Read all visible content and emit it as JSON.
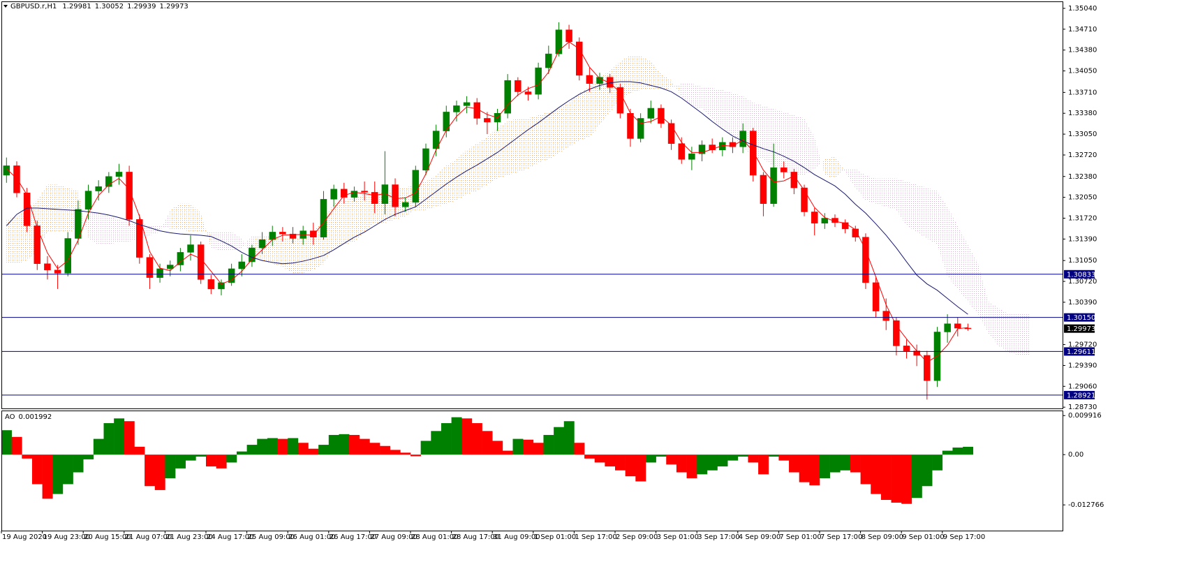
{
  "chart_data": {
    "type": "candlestick",
    "title": "GBPUSD.r,H1",
    "categories": [
      "19 Aug 2020",
      null,
      null,
      null,
      "19 Aug 23:00",
      null,
      null,
      null,
      "20 Aug 15:00",
      null,
      null,
      null,
      "21 Aug 07:00",
      null,
      null,
      null,
      "21 Aug 23:00",
      null,
      null,
      null,
      "24 Aug 17:00",
      null,
      null,
      null,
      "25 Aug 09:00",
      null,
      null,
      null,
      "26 Aug 01:00",
      null,
      null,
      null,
      "26 Aug 17:00",
      null,
      null,
      null,
      "27 Aug 09:00",
      null,
      null,
      null,
      "28 Aug 01:00",
      null,
      null,
      null,
      "28 Aug 17:00",
      null,
      null,
      null,
      "31 Aug 09:00",
      null,
      null,
      null,
      "1 Sep 01:00",
      null,
      null,
      null,
      "1 Sep 17:00",
      null,
      null,
      null,
      "2 Sep 09:00",
      null,
      null,
      null,
      "3 Sep 01:00",
      null,
      null,
      null,
      "3 Sep 17:00",
      null,
      null,
      null,
      "4 Sep 09:00",
      null,
      null,
      null,
      "7 Sep 01:00",
      null,
      null,
      null,
      "7 Sep 17:00",
      null,
      null,
      null,
      "8 Sep 09:00",
      null,
      null,
      null,
      "9 Sep 01:00",
      null,
      null,
      null,
      "9 Sep 17:00",
      null,
      null,
      null,
      null,
      null,
      null,
      null,
      null
    ],
    "open": [
      1.324,
      1.3255,
      1.3212,
      1.316,
      1.31,
      1.309,
      1.3085,
      1.314,
      1.3186,
      1.3215,
      1.3222,
      1.3238,
      1.3245,
      1.317,
      1.311,
      1.3078,
      1.3092,
      1.3098,
      1.3118,
      1.313,
      1.3075,
      1.306,
      1.307,
      1.3092,
      1.3103,
      1.3125,
      1.3138,
      1.315,
      1.3147,
      1.314,
      1.3152,
      1.3142,
      1.3202,
      1.3218,
      1.3205,
      1.3215,
      1.3213,
      1.3195,
      1.3225,
      1.319,
      1.3197,
      1.3248,
      1.3282,
      1.331,
      1.334,
      1.335,
      1.3355,
      1.333,
      1.3324,
      1.3338,
      1.339,
      1.3372,
      1.3368,
      1.341,
      1.3432,
      1.347,
      1.3451,
      1.3398,
      1.3385,
      1.3395,
      1.3379,
      1.3338,
      1.3298,
      1.333,
      1.3346,
      1.3322,
      1.329,
      1.3265,
      1.3274,
      1.3288,
      1.328,
      1.3292,
      1.3285,
      1.331,
      1.324,
      1.3195,
      1.3252,
      1.3245,
      1.322,
      1.3182,
      1.3164,
      1.3172,
      1.3165,
      1.3155,
      1.3142,
      1.307,
      1.3025,
      1.301,
      1.297,
      1.2962,
      1.2955,
      1.2915,
      1.2992,
      1.3005,
      1.29981,
      null,
      null,
      null,
      null,
      null,
      null
    ],
    "high": [
      1.3268,
      1.3262,
      1.322,
      1.3168,
      1.3112,
      1.3098,
      1.315,
      1.32,
      1.3225,
      1.3232,
      1.3245,
      1.3258,
      1.3255,
      1.3178,
      1.3115,
      1.31,
      1.3105,
      1.3125,
      1.3145,
      1.3135,
      1.3082,
      1.3075,
      1.31,
      1.3115,
      1.313,
      1.315,
      1.316,
      1.3158,
      1.3158,
      1.316,
      1.3165,
      1.3215,
      1.3225,
      1.3228,
      1.3222,
      1.323,
      1.323,
      1.3278,
      1.3235,
      1.3205,
      1.3255,
      1.329,
      1.332,
      1.335,
      1.3358,
      1.3365,
      1.3362,
      1.334,
      1.3345,
      1.34,
      1.3395,
      1.338,
      1.3418,
      1.3445,
      1.3482,
      1.3478,
      1.3458,
      1.341,
      1.3402,
      1.34,
      1.3385,
      1.3345,
      1.3338,
      1.3358,
      1.3352,
      1.3328,
      1.33,
      1.3285,
      1.3295,
      1.3298,
      1.33,
      1.33,
      1.3322,
      1.3315,
      1.3245,
      1.329,
      1.3262,
      1.325,
      1.3225,
      1.3188,
      1.318,
      1.3178,
      1.317,
      1.316,
      1.3148,
      1.3078,
      1.3045,
      1.3015,
      1.298,
      1.2972,
      1.2962,
      1.3,
      1.302,
      1.3015,
      1.30052,
      null,
      null,
      null,
      null,
      null,
      null
    ],
    "low": [
      1.3228,
      1.3205,
      1.315,
      1.309,
      1.3075,
      1.306,
      1.308,
      1.313,
      1.317,
      1.32,
      1.3212,
      1.3225,
      1.316,
      1.31,
      1.306,
      1.307,
      1.308,
      1.3088,
      1.3105,
      1.3068,
      1.3052,
      1.305,
      1.3065,
      1.308,
      1.3095,
      1.3115,
      1.3128,
      1.3135,
      1.3132,
      1.313,
      1.313,
      1.3138,
      1.319,
      1.3195,
      1.3198,
      1.32,
      1.318,
      1.3178,
      1.3175,
      1.3182,
      1.319,
      1.324,
      1.327,
      1.33,
      1.3325,
      1.3338,
      1.332,
      1.3305,
      1.331,
      1.333,
      1.3365,
      1.3358,
      1.336,
      1.34,
      1.3428,
      1.344,
      1.339,
      1.3372,
      1.3375,
      1.337,
      1.333,
      1.3285,
      1.3292,
      1.3322,
      1.3315,
      1.328,
      1.3258,
      1.3248,
      1.3262,
      1.3275,
      1.327,
      1.3275,
      1.3275,
      1.323,
      1.3175,
      1.319,
      1.3235,
      1.321,
      1.3175,
      1.3145,
      1.3155,
      1.3158,
      1.3148,
      1.3135,
      1.306,
      1.3015,
      1.2995,
      1.2955,
      1.295,
      1.2938,
      1.2885,
      1.2905,
      1.2975,
      1.2985,
      1.29939,
      null,
      null,
      null,
      null,
      null,
      null
    ],
    "close": [
      1.3255,
      1.3212,
      1.316,
      1.31,
      1.309,
      1.3085,
      1.314,
      1.3186,
      1.3215,
      1.3222,
      1.3238,
      1.3245,
      1.317,
      1.311,
      1.3078,
      1.3092,
      1.3098,
      1.3118,
      1.313,
      1.3075,
      1.306,
      1.307,
      1.3092,
      1.3103,
      1.3125,
      1.3138,
      1.315,
      1.3147,
      1.314,
      1.3152,
      1.3142,
      1.3202,
      1.3218,
      1.3205,
      1.3215,
      1.3213,
      1.3195,
      1.3225,
      1.319,
      1.3197,
      1.3248,
      1.3282,
      1.331,
      1.334,
      1.335,
      1.3355,
      1.333,
      1.3324,
      1.3338,
      1.339,
      1.3372,
      1.3368,
      1.341,
      1.3432,
      1.347,
      1.3451,
      1.3398,
      1.3385,
      1.3395,
      1.3379,
      1.3338,
      1.3298,
      1.333,
      1.3346,
      1.3322,
      1.329,
      1.3265,
      1.3274,
      1.3288,
      1.328,
      1.3292,
      1.3285,
      1.331,
      1.324,
      1.3195,
      1.3252,
      1.3245,
      1.322,
      1.3182,
      1.3164,
      1.3172,
      1.3165,
      1.3155,
      1.3142,
      1.307,
      1.3025,
      1.301,
      1.297,
      1.2962,
      1.2955,
      1.2915,
      1.2992,
      1.3005,
      1.2998,
      1.29973,
      null,
      null,
      null,
      null,
      null,
      null
    ],
    "up_color": "#008000",
    "down_color": "#ff0000",
    "ylim": [
      1.2871,
      1.3515
    ],
    "yticks": [
      {
        "value": 1.3504,
        "label": "1.35040"
      },
      {
        "value": 1.3471,
        "label": "1.34710"
      },
      {
        "value": 1.3438,
        "label": "1.34380"
      },
      {
        "value": 1.3405,
        "label": "1.34050"
      },
      {
        "value": 1.3371,
        "label": "1.33710"
      },
      {
        "value": 1.3338,
        "label": "1.33380"
      },
      {
        "value": 1.3305,
        "label": "1.33050"
      },
      {
        "value": 1.3272,
        "label": "1.32720"
      },
      {
        "value": 1.3238,
        "label": "1.32380"
      },
      {
        "value": 1.3205,
        "label": "1.32050"
      },
      {
        "value": 1.3172,
        "label": "1.31720"
      },
      {
        "value": 1.3139,
        "label": "1.31390"
      },
      {
        "value": 1.3105,
        "label": "1.31050"
      },
      {
        "value": 1.3072,
        "label": "1.30720"
      },
      {
        "value": 1.3039,
        "label": "1.30390"
      },
      {
        "value": 1.2972,
        "label": "1.29720"
      },
      {
        "value": 1.2939,
        "label": "1.29390"
      },
      {
        "value": 1.2906,
        "label": "1.29060"
      },
      {
        "value": 1.2873,
        "label": "1.28730"
      }
    ],
    "overlays": [
      {
        "color": "#ff0000",
        "values": [
          1.325,
          1.3235,
          1.3209,
          1.3157,
          1.3117,
          1.3092,
          1.3105,
          1.3137,
          1.318,
          1.3208,
          1.3225,
          1.3235,
          1.3218,
          1.3175,
          1.3119,
          1.3093,
          1.3089,
          1.3103,
          1.3115,
          1.3108,
          1.3088,
          1.3068,
          1.3074,
          1.3088,
          1.3107,
          1.3122,
          1.3138,
          1.3145,
          1.3146,
          1.3146,
          1.3145,
          1.3165,
          1.3187,
          1.3208,
          1.3213,
          1.3211,
          1.3208,
          1.3211,
          1.3203,
          1.3204,
          1.3212,
          1.3242,
          1.328,
          1.3311,
          1.3333,
          1.3348,
          1.3345,
          1.3336,
          1.3331,
          1.3351,
          1.3367,
          1.3377,
          1.3383,
          1.3403,
          1.3437,
          1.3451,
          1.344,
          1.3411,
          1.3393,
          1.3386,
          1.3371,
          1.3338,
          1.3322,
          1.3325,
          1.3333,
          1.3319,
          1.3292,
          1.3276,
          1.3276,
          1.3281,
          1.3287,
          1.3286,
          1.3296,
          1.3278,
          1.3248,
          1.3229,
          1.3231,
          1.3239,
          1.3216,
          1.3189,
          1.3173,
          1.3167,
          1.3164,
          1.3154,
          1.3122,
          1.3079,
          1.3035,
          1.3002,
          1.2981,
          1.2962,
          1.2944,
          1.2954,
          1.2971,
          1.2997,
          1.2999,
          null,
          null,
          null,
          null,
          null,
          null
        ]
      },
      {
        "color": "#191970",
        "values": [
          1.316,
          1.3178,
          1.3188,
          1.3188,
          1.3187,
          1.3186,
          1.3185,
          1.3184,
          1.3182,
          1.318,
          1.3177,
          1.3173,
          1.3168,
          1.3162,
          1.3157,
          1.3152,
          1.3149,
          1.3147,
          1.3146,
          1.3145,
          1.3143,
          1.3136,
          1.3128,
          1.3118,
          1.311,
          1.3105,
          1.3102,
          1.31,
          1.3101,
          1.3104,
          1.3108,
          1.3113,
          1.3122,
          1.3132,
          1.3142,
          1.315,
          1.316,
          1.317,
          1.3178,
          1.3184,
          1.319,
          1.3202,
          1.3214,
          1.3226,
          1.3237,
          1.3247,
          1.3256,
          1.3266,
          1.3276,
          1.3288,
          1.33,
          1.3312,
          1.3323,
          1.3335,
          1.3347,
          1.3358,
          1.3368,
          1.3376,
          1.3382,
          1.3386,
          1.3388,
          1.3388,
          1.3386,
          1.3382,
          1.3378,
          1.3372,
          1.3362,
          1.335,
          1.3338,
          1.3325,
          1.3313,
          1.3302,
          1.3294,
          1.3288,
          1.3282,
          1.3277,
          1.327,
          1.3262,
          1.3252,
          1.3241,
          1.3232,
          1.3223,
          1.321,
          1.3194,
          1.318,
          1.3163,
          1.3145,
          1.3125,
          1.3103,
          1.3082,
          1.3068,
          1.3058,
          1.3045,
          1.3032,
          1.302,
          null,
          null,
          null,
          null,
          null,
          null
        ]
      }
    ],
    "cloud": {
      "up_color": "#f4a460",
      "down_color": "#d8a8d8",
      "span_a": [
        1.317,
        1.3175,
        1.3185,
        1.32,
        1.3225,
        1.3225,
        1.322,
        1.3215,
        1.314,
        1.313,
        1.313,
        1.3135,
        1.3135,
        1.314,
        1.3145,
        1.315,
        1.3185,
        1.3195,
        1.3195,
        1.318,
        1.3125,
        1.312,
        1.312,
        1.3125,
        1.3145,
        1.3145,
        1.3145,
        1.314,
        1.314,
        1.314,
        1.315,
        1.317,
        1.3195,
        1.32,
        1.3205,
        1.321,
        1.3215,
        1.3215,
        1.322,
        1.322,
        1.3225,
        1.323,
        1.324,
        1.3255,
        1.3265,
        1.328,
        1.329,
        1.33,
        1.3315,
        1.3325,
        1.333,
        1.333,
        1.3335,
        1.334,
        1.3345,
        1.3355,
        1.337,
        1.338,
        1.3395,
        1.3405,
        1.342,
        1.343,
        1.3428,
        1.342,
        1.34,
        1.339,
        1.3365,
        1.335,
        1.3345,
        1.333,
        1.3315,
        1.33,
        1.3285,
        1.327,
        1.3265,
        1.3255,
        1.3245,
        1.324,
        1.324,
        1.325,
        1.3265,
        1.327,
        1.3245,
        1.322,
        1.32,
        1.3195,
        1.319,
        1.3185,
        1.316,
        1.315,
        1.314,
        1.313,
        1.308,
        1.306,
        1.304,
        1.302,
        1.299,
        1.297,
        1.296,
        1.2955,
        1.2955
      ],
      "span_b": [
        1.31,
        1.31,
        1.3105,
        1.312,
        1.315,
        1.315,
        1.315,
        1.3155,
        1.318,
        1.318,
        1.3175,
        1.317,
        1.3165,
        1.3165,
        1.316,
        1.316,
        1.3155,
        1.3155,
        1.315,
        1.315,
        1.315,
        1.315,
        1.315,
        1.314,
        1.311,
        1.3105,
        1.31,
        1.3095,
        1.3085,
        1.3085,
        1.309,
        1.31,
        1.3125,
        1.313,
        1.3135,
        1.315,
        1.3165,
        1.3165,
        1.317,
        1.3175,
        1.3185,
        1.3185,
        1.319,
        1.3195,
        1.32,
        1.321,
        1.3215,
        1.3225,
        1.3235,
        1.324,
        1.3245,
        1.325,
        1.326,
        1.3265,
        1.3275,
        1.3285,
        1.3295,
        1.33,
        1.332,
        1.334,
        1.336,
        1.337,
        1.3375,
        1.3375,
        1.3375,
        1.3378,
        1.3385,
        1.3385,
        1.338,
        1.3378,
        1.3375,
        1.337,
        1.3365,
        1.3355,
        1.335,
        1.3345,
        1.334,
        1.3335,
        1.333,
        1.33,
        1.324,
        1.3235,
        1.325,
        1.325,
        1.324,
        1.3235,
        1.3235,
        1.3235,
        1.323,
        1.3225,
        1.322,
        1.3215,
        1.319,
        1.316,
        1.313,
        1.31,
        1.304,
        1.303,
        1.302,
        1.302,
        1.302
      ]
    },
    "hline_color": "#000080",
    "hlines": [
      1.30833,
      {
        "value": 1.3015,
        "label": "1.30150"
      },
      1.29611,
      1.28921
    ],
    "ao": {
      "name": "AO",
      "up_color": "#008000",
      "down_color": "#ff0000",
      "ylim": [
        -0.0193,
        0.0112
      ],
      "yticks": [
        0.009916,
        {
          "value": 0,
          "label": "0.00"
        },
        -0.012766
      ],
      "values": [
        0.0062,
        0.0045,
        -0.001,
        -0.0075,
        -0.0112,
        -0.01,
        -0.0075,
        -0.0045,
        -0.0012,
        0.004,
        0.008,
        0.0092,
        0.0085,
        0.002,
        -0.008,
        -0.009,
        -0.006,
        -0.0035,
        -0.0015,
        -0.0005,
        -0.003,
        -0.0035,
        -0.002,
        0.0008,
        0.0025,
        0.004,
        0.0042,
        0.004,
        0.0042,
        0.003,
        0.0015,
        0.0025,
        0.005,
        0.0052,
        0.005,
        0.004,
        0.003,
        0.0022,
        0.0012,
        0.0005,
        -0.0004,
        0.0035,
        0.006,
        0.008,
        0.0095,
        0.0092,
        0.008,
        0.006,
        0.0035,
        0.001,
        0.004,
        0.0038,
        0.003,
        0.005,
        0.007,
        0.0085,
        0.003,
        -0.001,
        -0.002,
        -0.003,
        -0.004,
        -0.0055,
        -0.0068,
        -0.002,
        -0.0005,
        -0.0025,
        -0.0045,
        -0.006,
        -0.005,
        -0.004,
        -0.003,
        -0.0015,
        -0.0005,
        -0.002,
        -0.005,
        -0.0005,
        -0.0015,
        -0.0045,
        -0.007,
        -0.0078,
        -0.006,
        -0.0045,
        -0.004,
        -0.0045,
        -0.0075,
        -0.01,
        -0.0115,
        -0.0122,
        -0.0125,
        -0.011,
        -0.008,
        -0.004,
        0.001,
        0.0018,
        0.001992,
        null,
        null,
        null,
        null,
        null,
        null
      ]
    }
  }
}
